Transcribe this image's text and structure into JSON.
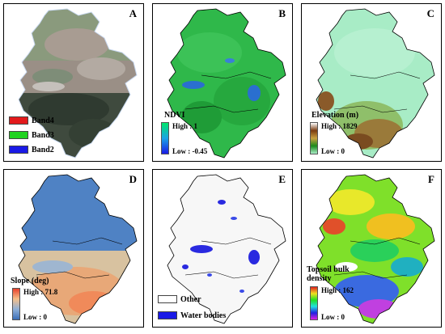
{
  "panels": [
    {
      "letter": "A",
      "legend_items": [
        {
          "label": "Band4",
          "color": "#e31a1c"
        },
        {
          "label": "Band3",
          "color": "#1fd21f"
        },
        {
          "label": "Band2",
          "color": "#1a1ae6"
        }
      ]
    },
    {
      "letter": "B",
      "legend_title": "NDVI",
      "high": "High : 1",
      "low": "Low : -0.45"
    },
    {
      "letter": "C",
      "legend_title": "Elevation (m)",
      "high": "High : 1829",
      "low": "Low : 0"
    },
    {
      "letter": "D",
      "legend_title": "Slope (deg)",
      "high": "High : 71.8",
      "low": "Low : 0"
    },
    {
      "letter": "E",
      "legend_items": [
        {
          "label": "Other",
          "color": "#ffffff"
        },
        {
          "label": "Water bodies",
          "color": "#1a1ae6"
        }
      ]
    },
    {
      "letter": "F",
      "legend_title": "Topsoil bulk density",
      "high": "High : 162",
      "low": "Low : 0"
    }
  ]
}
